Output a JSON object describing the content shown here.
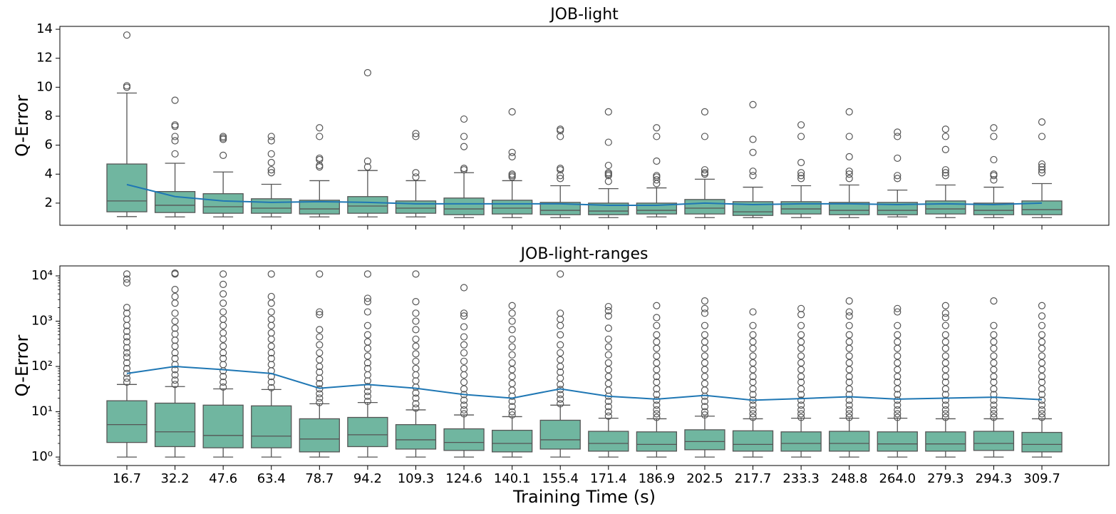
{
  "chart_data": [
    {
      "type": "box",
      "title": "JOB-light",
      "ylabel": "Q-Error",
      "ylim": [
        0.47,
        14.2
      ],
      "yticks": [
        2,
        4,
        6,
        8,
        10,
        12,
        14
      ],
      "log": false,
      "color": "#70b6a0",
      "mean_color": "#1f77b4",
      "boxes": [
        {
          "low": 1.07,
          "q1": 1.4,
          "median": 2.15,
          "q3": 4.7,
          "high": 9.6,
          "outliers": [
            10.0,
            10.1,
            13.6
          ]
        },
        {
          "low": 1.05,
          "q1": 1.35,
          "median": 1.85,
          "q3": 2.8,
          "high": 4.75,
          "outliers": [
            5.4,
            6.3,
            6.6,
            7.3,
            7.4,
            9.1
          ]
        },
        {
          "low": 1.05,
          "q1": 1.3,
          "median": 1.75,
          "q3": 2.65,
          "high": 4.15,
          "outliers": [
            5.3,
            6.4,
            6.5,
            6.6
          ]
        },
        {
          "low": 1.05,
          "q1": 1.3,
          "median": 1.65,
          "q3": 2.3,
          "high": 3.3,
          "outliers": [
            4.1,
            4.3,
            4.8,
            5.4,
            6.3,
            6.6
          ]
        },
        {
          "low": 1.05,
          "q1": 1.25,
          "median": 1.6,
          "q3": 2.2,
          "high": 3.55,
          "outliers": [
            4.5,
            4.6,
            5.0,
            5.1,
            6.6,
            7.2
          ]
        },
        {
          "low": 1.05,
          "q1": 1.3,
          "median": 1.8,
          "q3": 2.45,
          "high": 4.25,
          "outliers": [
            4.5,
            4.9,
            11.0
          ]
        },
        {
          "low": 1.05,
          "q1": 1.3,
          "median": 1.65,
          "q3": 2.15,
          "high": 3.55,
          "outliers": [
            3.8,
            4.1,
            6.6,
            6.8
          ]
        },
        {
          "low": 1.0,
          "q1": 1.2,
          "median": 1.6,
          "q3": 2.35,
          "high": 4.1,
          "outliers": [
            4.3,
            4.4,
            5.9,
            6.6,
            7.8
          ]
        },
        {
          "low": 1.0,
          "q1": 1.25,
          "median": 1.65,
          "q3": 2.2,
          "high": 3.55,
          "outliers": [
            3.8,
            3.9,
            4.0,
            5.2,
            5.5,
            8.3
          ]
        },
        {
          "low": 1.0,
          "q1": 1.2,
          "median": 1.5,
          "q3": 2.05,
          "high": 3.2,
          "outliers": [
            3.7,
            3.9,
            4.3,
            4.4,
            6.6,
            7.0,
            7.1
          ]
        },
        {
          "low": 1.0,
          "q1": 1.2,
          "median": 1.45,
          "q3": 2.0,
          "high": 3.0,
          "outliers": [
            3.5,
            3.9,
            4.0,
            4.1,
            4.6,
            6.2,
            8.3
          ]
        },
        {
          "low": 1.05,
          "q1": 1.25,
          "median": 1.5,
          "q3": 2.0,
          "high": 3.05,
          "outliers": [
            3.35,
            3.6,
            3.8,
            3.9,
            4.9,
            6.6,
            7.2
          ]
        },
        {
          "low": 1.0,
          "q1": 1.25,
          "median": 1.65,
          "q3": 2.25,
          "high": 3.65,
          "outliers": [
            4.0,
            4.1,
            4.3,
            6.6,
            8.3
          ]
        },
        {
          "low": 1.0,
          "q1": 1.15,
          "median": 1.4,
          "q3": 2.1,
          "high": 3.1,
          "outliers": [
            3.9,
            4.2,
            5.5,
            6.4,
            8.8
          ]
        },
        {
          "low": 1.0,
          "q1": 1.25,
          "median": 1.6,
          "q3": 2.1,
          "high": 3.2,
          "outliers": [
            3.7,
            3.9,
            4.1,
            4.8,
            6.6,
            7.4
          ]
        },
        {
          "low": 1.0,
          "q1": 1.2,
          "median": 1.5,
          "q3": 2.05,
          "high": 3.25,
          "outliers": [
            3.7,
            4.0,
            4.2,
            5.2,
            6.6,
            8.3
          ]
        },
        {
          "low": 1.05,
          "q1": 1.2,
          "median": 1.5,
          "q3": 2.05,
          "high": 2.9,
          "outliers": [
            3.7,
            3.9,
            5.1,
            6.6,
            6.9
          ]
        },
        {
          "low": 1.0,
          "q1": 1.25,
          "median": 1.6,
          "q3": 2.15,
          "high": 3.25,
          "outliers": [
            3.9,
            4.1,
            4.3,
            5.7,
            6.6,
            7.1
          ]
        },
        {
          "low": 1.0,
          "q1": 1.2,
          "median": 1.5,
          "q3": 2.0,
          "high": 3.1,
          "outliers": [
            3.6,
            3.9,
            4.0,
            5.0,
            6.6,
            7.2
          ]
        },
        {
          "low": 1.0,
          "q1": 1.2,
          "median": 1.55,
          "q3": 2.15,
          "high": 3.35,
          "outliers": [
            4.1,
            4.3,
            4.5,
            4.7,
            6.6,
            7.6
          ]
        }
      ],
      "mean": [
        3.28,
        2.45,
        2.15,
        2.05,
        2.1,
        2.05,
        1.95,
        1.95,
        1.95,
        1.95,
        1.85,
        1.85,
        2.0,
        1.9,
        1.95,
        1.95,
        1.9,
        1.95,
        1.9,
        2.0
      ]
    },
    {
      "type": "box",
      "title": "JOB-light-ranges",
      "ylabel": "Q-Error",
      "xlabel": "Training Time (s)",
      "categories": [
        "16.7",
        "32.2",
        "47.6",
        "63.4",
        "78.7",
        "94.2",
        "109.3",
        "124.6",
        "140.1",
        "155.4",
        "171.4",
        "186.9",
        "202.5",
        "217.7",
        "233.3",
        "248.8",
        "264.0",
        "279.3",
        "294.3",
        "309.7"
      ],
      "ylim": [
        0.65,
        16600
      ],
      "log": true,
      "yticks": [
        {
          "value": 1,
          "label": "10⁰"
        },
        {
          "value": 10,
          "label": "10¹"
        },
        {
          "value": 100,
          "label": "10²"
        },
        {
          "value": 1000,
          "label": "10³"
        },
        {
          "value": 10000,
          "label": "10⁴"
        }
      ],
      "color": "#70b6a0",
      "mean_color": "#1f77b4",
      "boxes": [
        {
          "low": 1.0,
          "q1": 2.1,
          "median": 5.2,
          "q3": 17.5,
          "high": 40,
          "outliers": [
            45,
            55,
            70,
            90,
            120,
            160,
            200,
            260,
            350,
            450,
            600,
            800,
            1100,
            1500,
            2000,
            7000,
            8500,
            11000
          ]
        },
        {
          "low": 1.0,
          "q1": 1.7,
          "median": 3.6,
          "q3": 15.5,
          "high": 36,
          "outliers": [
            40,
            50,
            65,
            85,
            110,
            150,
            200,
            280,
            380,
            520,
            700,
            1000,
            1500,
            2500,
            3500,
            5000,
            11000,
            11500
          ]
        },
        {
          "low": 1.0,
          "q1": 1.6,
          "median": 3.0,
          "q3": 14,
          "high": 32,
          "outliers": [
            35,
            45,
            60,
            80,
            110,
            150,
            200,
            280,
            400,
            550,
            800,
            1100,
            1600,
            2500,
            4000,
            6500,
            11000
          ]
        },
        {
          "low": 1.0,
          "q1": 1.6,
          "median": 2.9,
          "q3": 13.5,
          "high": 31,
          "outliers": [
            34,
            45,
            60,
            80,
            110,
            150,
            200,
            280,
            400,
            550,
            800,
            1100,
            1600,
            2500,
            3500,
            11000
          ]
        },
        {
          "low": 1.0,
          "q1": 1.3,
          "median": 2.5,
          "q3": 7,
          "high": 15,
          "outliers": [
            16,
            20,
            25,
            32,
            42,
            55,
            75,
            100,
            140,
            200,
            300,
            450,
            650,
            1400,
            1600,
            11000
          ]
        },
        {
          "low": 1.0,
          "q1": 1.7,
          "median": 3.1,
          "q3": 7.5,
          "high": 16,
          "outliers": [
            17,
            22,
            28,
            36,
            48,
            65,
            90,
            120,
            170,
            250,
            350,
            500,
            800,
            1600,
            2700,
            3200,
            11000
          ]
        },
        {
          "low": 1.0,
          "q1": 1.5,
          "median": 2.4,
          "q3": 5.2,
          "high": 11,
          "outliers": [
            12,
            15,
            20,
            26,
            35,
            48,
            65,
            90,
            130,
            190,
            280,
            400,
            650,
            1000,
            1500,
            2700,
            11000
          ]
        },
        {
          "low": 1.0,
          "q1": 1.4,
          "median": 2.1,
          "q3": 4.2,
          "high": 8.5,
          "outliers": [
            9,
            11,
            14,
            18,
            24,
            32,
            45,
            65,
            90,
            130,
            200,
            300,
            450,
            750,
            1300,
            1500,
            5500
          ]
        },
        {
          "low": 1.0,
          "q1": 1.3,
          "median": 2.0,
          "q3": 3.9,
          "high": 7.8,
          "outliers": [
            8.5,
            10,
            13,
            17,
            22,
            30,
            42,
            60,
            85,
            120,
            180,
            270,
            400,
            650,
            1000,
            1500,
            2200
          ]
        },
        {
          "low": 1.0,
          "q1": 1.5,
          "median": 2.4,
          "q3": 6.5,
          "high": 14,
          "outliers": [
            15,
            19,
            24,
            31,
            40,
            55,
            75,
            100,
            140,
            200,
            300,
            500,
            800,
            1100,
            1500,
            11000
          ]
        },
        {
          "low": 1.0,
          "q1": 1.35,
          "median": 2.0,
          "q3": 3.7,
          "high": 7.2,
          "outliers": [
            8,
            10,
            13,
            17,
            22,
            30,
            42,
            60,
            85,
            120,
            180,
            270,
            400,
            700,
            1300,
            1700,
            2100
          ]
        },
        {
          "low": 1.0,
          "q1": 1.35,
          "median": 1.9,
          "q3": 3.6,
          "high": 7.0,
          "outliers": [
            7.5,
            9,
            11,
            14,
            18,
            24,
            32,
            45,
            60,
            85,
            120,
            170,
            250,
            350,
            500,
            800,
            1200,
            2200
          ]
        },
        {
          "low": 1.0,
          "q1": 1.45,
          "median": 2.2,
          "q3": 4.0,
          "high": 8.0,
          "outliers": [
            8.5,
            10,
            13,
            17,
            22,
            30,
            42,
            60,
            85,
            120,
            170,
            250,
            350,
            500,
            800,
            1500,
            1900,
            2800
          ]
        },
        {
          "low": 1.0,
          "q1": 1.35,
          "median": 1.9,
          "q3": 3.8,
          "high": 7.0,
          "outliers": [
            7.5,
            9,
            11,
            14,
            18,
            24,
            32,
            45,
            60,
            85,
            120,
            170,
            250,
            350,
            500,
            800,
            1600
          ]
        },
        {
          "low": 1.0,
          "q1": 1.35,
          "median": 2.0,
          "q3": 3.6,
          "high": 7.2,
          "outliers": [
            7.5,
            9,
            11,
            14,
            18,
            24,
            32,
            45,
            60,
            85,
            120,
            170,
            250,
            350,
            500,
            800,
            1400,
            1900
          ]
        },
        {
          "low": 1.0,
          "q1": 1.35,
          "median": 2.0,
          "q3": 3.7,
          "high": 7.2,
          "outliers": [
            7.5,
            9,
            11,
            14,
            18,
            24,
            32,
            45,
            60,
            85,
            120,
            170,
            250,
            350,
            500,
            800,
            1300,
            1600,
            2800
          ]
        },
        {
          "low": 1.0,
          "q1": 1.35,
          "median": 1.95,
          "q3": 3.6,
          "high": 7.2,
          "outliers": [
            7.5,
            9,
            11,
            14,
            18,
            24,
            32,
            45,
            60,
            85,
            120,
            170,
            250,
            350,
            500,
            800,
            1600,
            1900
          ]
        },
        {
          "low": 1.0,
          "q1": 1.35,
          "median": 1.95,
          "q3": 3.6,
          "high": 7.0,
          "outliers": [
            7.5,
            9,
            11,
            14,
            18,
            24,
            32,
            45,
            60,
            85,
            120,
            170,
            250,
            350,
            500,
            800,
            1200,
            1500,
            2200
          ]
        },
        {
          "low": 1.0,
          "q1": 1.4,
          "median": 2.0,
          "q3": 3.7,
          "high": 7.0,
          "outliers": [
            7.5,
            9,
            11,
            14,
            18,
            24,
            32,
            45,
            60,
            85,
            120,
            170,
            250,
            350,
            500,
            800,
            2800
          ]
        },
        {
          "low": 1.0,
          "q1": 1.3,
          "median": 1.9,
          "q3": 3.5,
          "high": 7.0,
          "outliers": [
            7.5,
            9,
            11,
            14,
            18,
            24,
            32,
            45,
            60,
            85,
            120,
            170,
            250,
            350,
            500,
            800,
            1300,
            2200
          ]
        }
      ],
      "mean": [
        70,
        100,
        85,
        70,
        33,
        40,
        33,
        24,
        20,
        32,
        22,
        19,
        23,
        18,
        19.5,
        21.5,
        19,
        20,
        21,
        18.5
      ]
    }
  ]
}
